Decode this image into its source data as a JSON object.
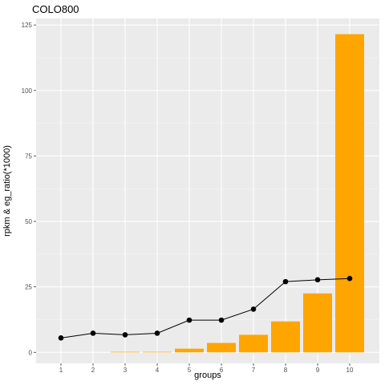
{
  "chart_data": {
    "type": "bar",
    "title": "COLO800",
    "xlabel": "groups",
    "ylabel": "rpkm & eg_ratio(*1000)",
    "categories": [
      "1",
      "2",
      "3",
      "4",
      "5",
      "6",
      "7",
      "8",
      "9",
      "10"
    ],
    "ylim": [
      -4.2,
      127.5
    ],
    "yticks": [
      0,
      25,
      50,
      75,
      100,
      125
    ],
    "grid": true,
    "legend": "none",
    "series": [
      {
        "type": "bar",
        "color": "#FFA500",
        "values": [
          0,
          0,
          0.2,
          0.2,
          1.4,
          3.6,
          6.7,
          11.8,
          22.5,
          121.5
        ]
      },
      {
        "type": "line",
        "color": "#000000",
        "values": [
          5.5,
          7.3,
          6.7,
          7.3,
          12.3,
          12.3,
          16.5,
          27.0,
          27.7,
          28.2
        ]
      }
    ]
  }
}
